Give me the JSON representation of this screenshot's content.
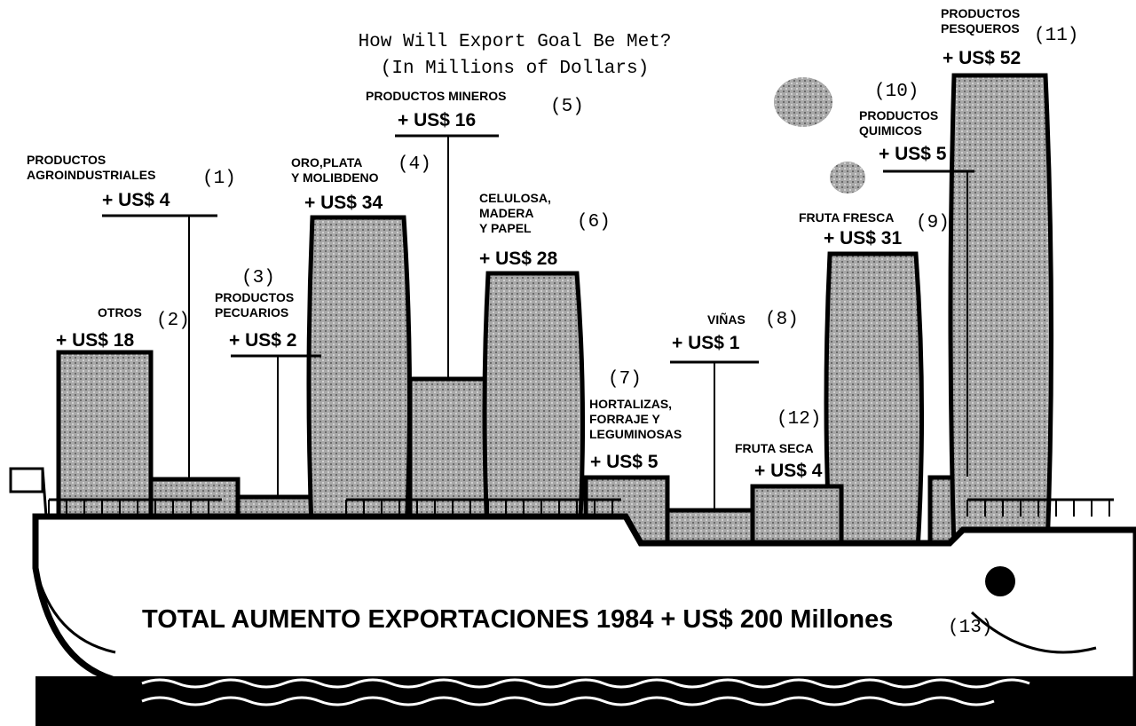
{
  "title": [
    "How Will Export Goal Be Met?",
    "(In Millions of Dollars)"
  ],
  "items": [
    {
      "number": "(1)",
      "label": [
        "PRODUCTOS",
        "AGROINDUSTRIALES"
      ],
      "value": "+ US$ 4"
    },
    {
      "number": "(2)",
      "label": [
        "OTROS"
      ],
      "value": "+ US$ 18"
    },
    {
      "number": "(3)",
      "label": [
        "PRODUCTOS",
        "PECUARIOS"
      ],
      "value": "+ US$ 2"
    },
    {
      "number": "(4)",
      "label": [
        "ORO,PLATA",
        "Y MOLIBDENO"
      ],
      "value": "+ US$ 34"
    },
    {
      "number": "(5)",
      "label": [
        "PRODUCTOS MINEROS"
      ],
      "value": "+ US$ 16"
    },
    {
      "number": "(6)",
      "label": [
        "CELULOSA,",
        "MADERA",
        "Y PAPEL"
      ],
      "value": "+ US$ 28"
    },
    {
      "number": "(7)",
      "label": [
        "HORTALIZAS,",
        "FORRAJE Y",
        "LEGUMINOSAS"
      ],
      "value": "+ US$ 5"
    },
    {
      "number": "(8)",
      "label": [
        "VIÑAS"
      ],
      "value": "+ US$ 1"
    },
    {
      "number": "(9)",
      "label": [
        "FRUTA FRESCA"
      ],
      "value": "+ US$ 31"
    },
    {
      "number": "(10)",
      "label": [
        "PRODUCTOS",
        "QUIMICOS"
      ],
      "value": "+ US$ 5"
    },
    {
      "number": "(11)",
      "label": [
        "PRODUCTOS",
        "PESQUEROS"
      ],
      "value": "+ US$ 52"
    },
    {
      "number": "(12)",
      "label": [
        "FRUTA SECA"
      ],
      "value": "+ US$ 4"
    }
  ],
  "total": {
    "text": "TOTAL AUMENTO EXPORTACIONES 1984  + US$ 200 Millones",
    "number": "(13)"
  }
}
